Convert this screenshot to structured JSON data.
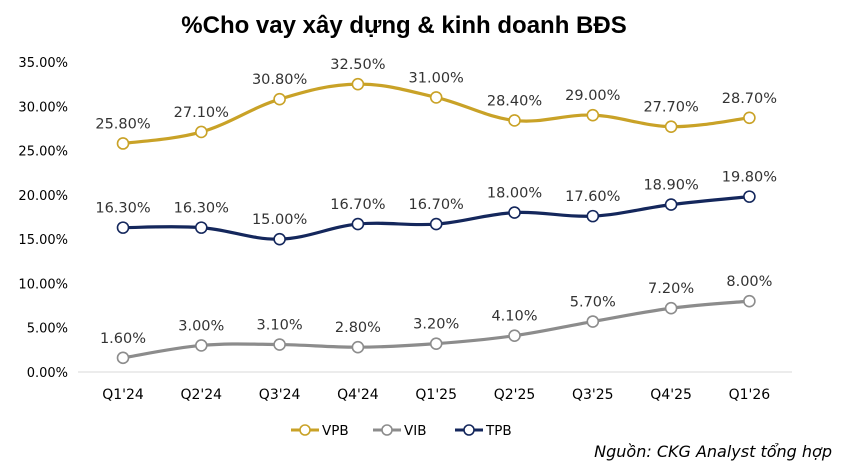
{
  "chart_data": {
    "type": "line",
    "title": "%Cho vay xây dựng & kinh doanh BĐS",
    "xlabel": "",
    "ylabel": "",
    "categories": [
      "Q1'24",
      "Q2'24",
      "Q3'24",
      "Q4'24",
      "Q1'25",
      "Q2'25",
      "Q3'25",
      "Q4'25",
      "Q1'26"
    ],
    "ylim": [
      0,
      35
    ],
    "yticks": [
      "0.00%",
      "5.00%",
      "10.00%",
      "15.00%",
      "20.00%",
      "25.00%",
      "30.00%",
      "35.00%"
    ],
    "grid": false,
    "legend": "bottom",
    "series": [
      {
        "name": "VPB",
        "color": "#C9A227",
        "values": [
          25.8,
          27.1,
          30.8,
          32.5,
          31.0,
          28.4,
          29.0,
          27.7,
          28.7
        ],
        "labels": [
          "25.80%",
          "27.10%",
          "30.80%",
          "32.50%",
          "31.00%",
          "28.40%",
          "29.00%",
          "27.70%",
          "28.70%"
        ]
      },
      {
        "name": "VIB",
        "color": "#8C8C8C",
        "values": [
          1.6,
          3.0,
          3.1,
          2.8,
          3.2,
          4.1,
          5.7,
          7.2,
          8.0
        ],
        "labels": [
          "1.60%",
          "3.00%",
          "3.10%",
          "2.80%",
          "3.20%",
          "4.10%",
          "5.70%",
          "7.20%",
          "8.00%"
        ]
      },
      {
        "name": "TPB",
        "color": "#14275C",
        "values": [
          16.3,
          16.3,
          15.0,
          16.7,
          16.7,
          18.0,
          17.6,
          18.9,
          19.8
        ],
        "labels": [
          "16.30%",
          "16.30%",
          "15.00%",
          "16.70%",
          "16.70%",
          "18.00%",
          "17.60%",
          "18.90%",
          "19.80%"
        ]
      }
    ],
    "source": "Nguồn: CKG Analyst tổng hợp"
  }
}
